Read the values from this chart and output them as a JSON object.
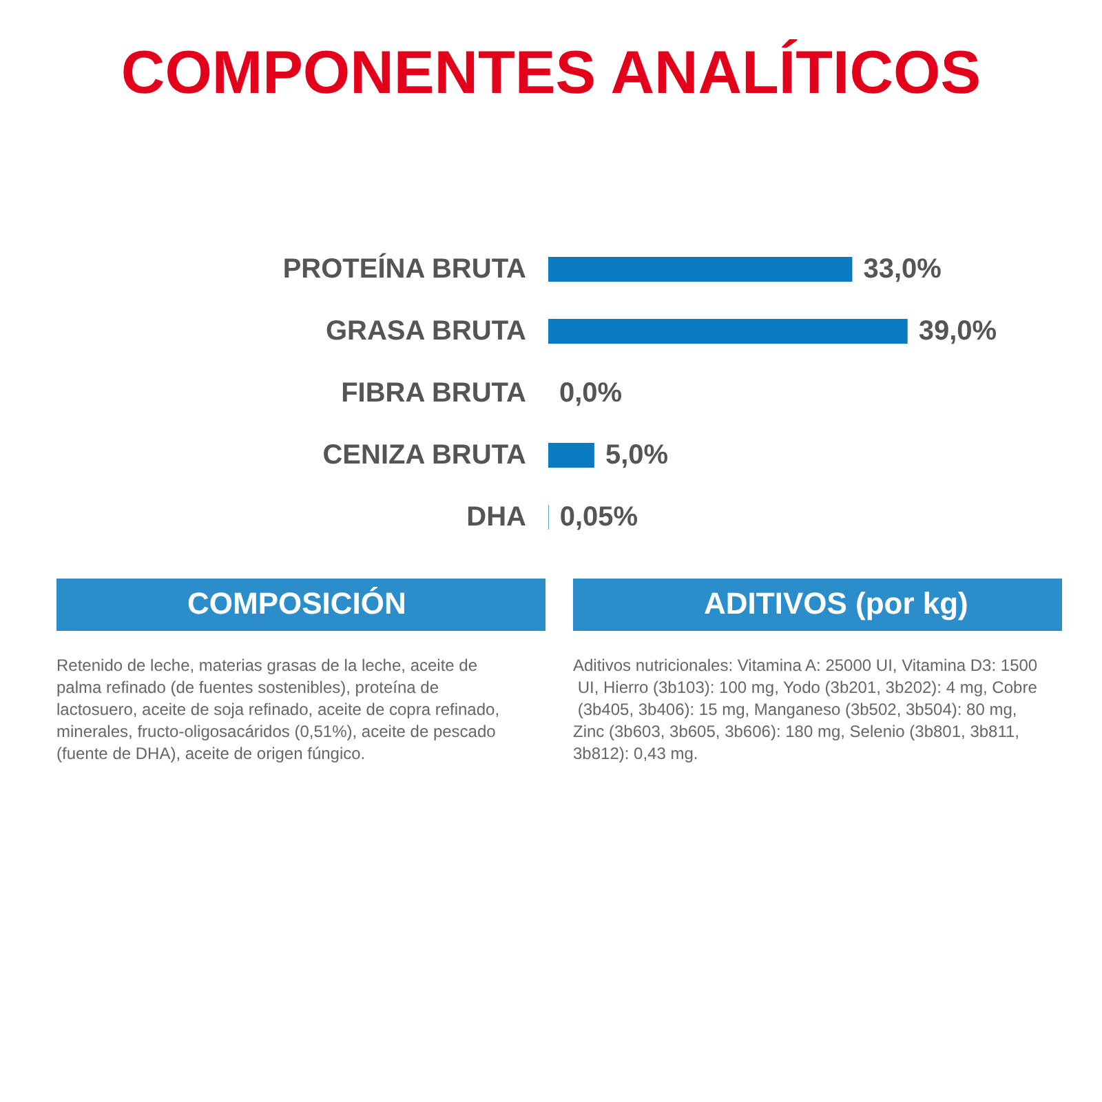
{
  "chart_data": {
    "type": "bar",
    "orientation": "horizontal",
    "title": "COMPONENTES ANALÍTICOS",
    "categories": [
      "PROTEÍNA BRUTA",
      "GRASA BRUTA",
      "FIBRA BRUTA",
      "CENIZA BRUTA",
      "DHA"
    ],
    "values": [
      33.0,
      39.0,
      0.0,
      5.0,
      0.05
    ],
    "value_labels": [
      "33,0%",
      "39,0%",
      "0,0%",
      "5,0%",
      "0,05%"
    ],
    "color": "#0b7bc1",
    "tick_labels": "y",
    "annotations": [
      "COMPOSICIÓN",
      "Retenido de leche, materias grasas de la leche, aceite de palma refinado (de fuentes sostenibles), proteína de lactosuero, aceite de soja refinado, aceite de copra refinado, minerales, fructo-oligosacáridos (0,51%), aceite de pescado (fuente de DHA), aceite de origen fúngico.",
      "ADITIVOS (por kg)",
      "Aditivos nutricionales: Vitamina A: 25000 UI, Vitamina D3: 1500 UI, Hierro (3b103): 100 mg, Yodo (3b201, 3b202): 4 mg, Cobre (3b405, 3b406): 15 mg, Manganeso (3b502, 3b504): 80 mg, Zinc (3b603, 3b605, 3b606): 180 mg, Selenio (3b801, 3b811, 3b812): 0,43 mg."
    ]
  }
}
